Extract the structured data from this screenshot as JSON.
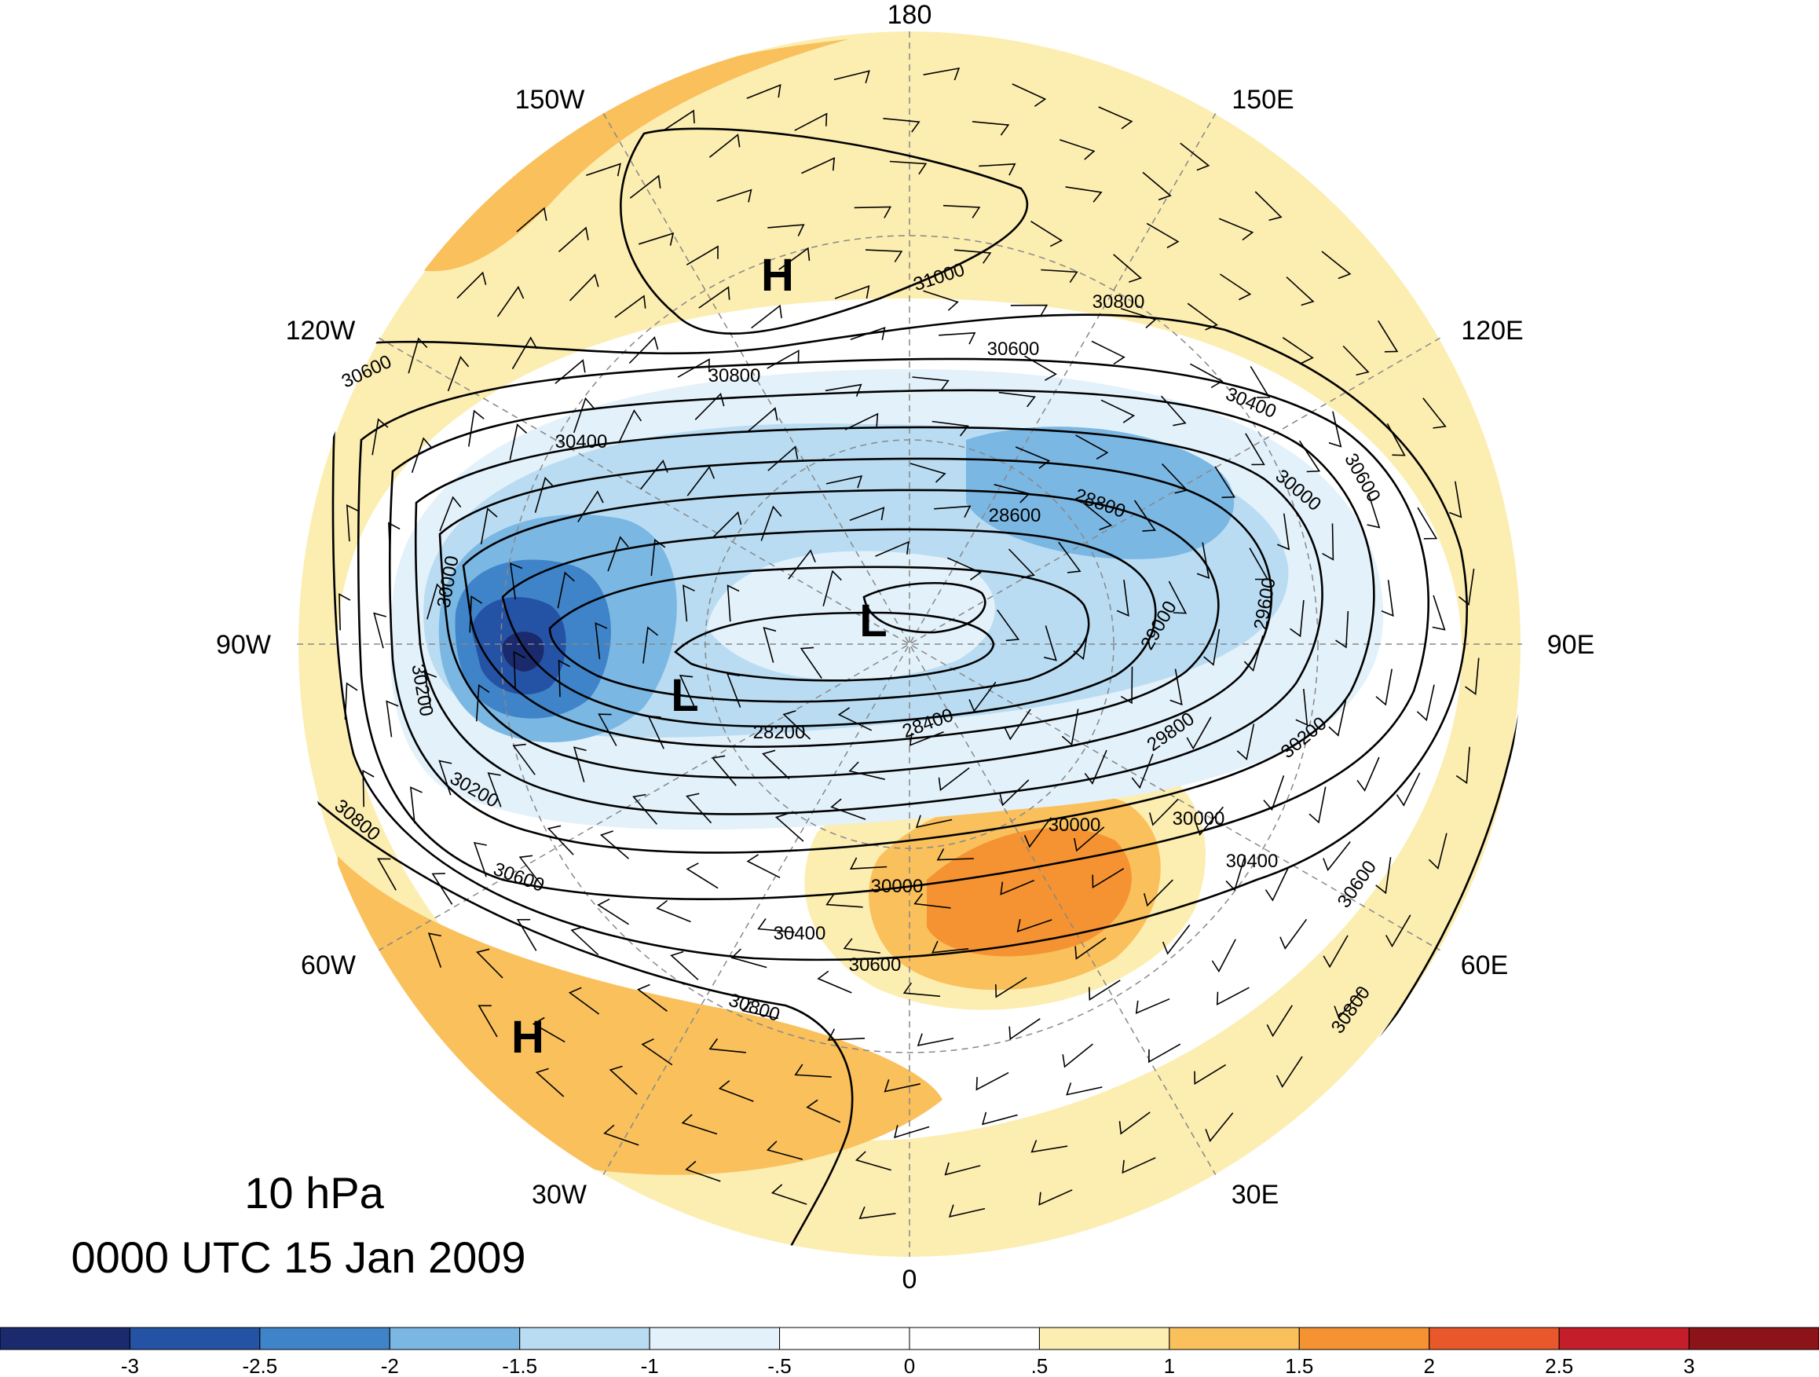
{
  "title": {
    "level": "10 hPa",
    "datetime": "0000 UTC 15 Jan 2009"
  },
  "longitude_labels": [
    "180",
    "150E",
    "120E",
    "90E",
    "60E",
    "30E",
    "0",
    "30W",
    "60W",
    "90W",
    "120W",
    "150W"
  ],
  "pressure_centers": [
    "H",
    "H",
    "L",
    "L"
  ],
  "contour_labels": [
    "31000",
    "30800",
    "30800",
    "30600",
    "30400",
    "30400",
    "30000",
    "30600",
    "30600",
    "28800",
    "28600",
    "30000",
    "29600",
    "29000",
    "30000",
    "30200",
    "28200",
    "28400",
    "29800",
    "30200",
    "30200",
    "30800",
    "30000",
    "30400",
    "30600",
    "30000",
    "30400",
    "30600",
    "30600",
    "30800",
    "30800"
  ],
  "colorbar": {
    "ticks": [
      "-3",
      "-2.5",
      "-2",
      "-1.5",
      "-1",
      "-.5",
      "0",
      ".5",
      "1",
      "1.5",
      "2",
      "2.5",
      "3"
    ],
    "colors": [
      "#1a2a6c",
      "#2453a6",
      "#3f84c8",
      "#7bb7e3",
      "#b9dcf2",
      "#e3f1fa",
      "#ffffff",
      "#ffffff",
      "#fcedb1",
      "#f9c05c",
      "#f59332",
      "#e8582a",
      "#c41e2a",
      "#8c1418"
    ]
  }
}
